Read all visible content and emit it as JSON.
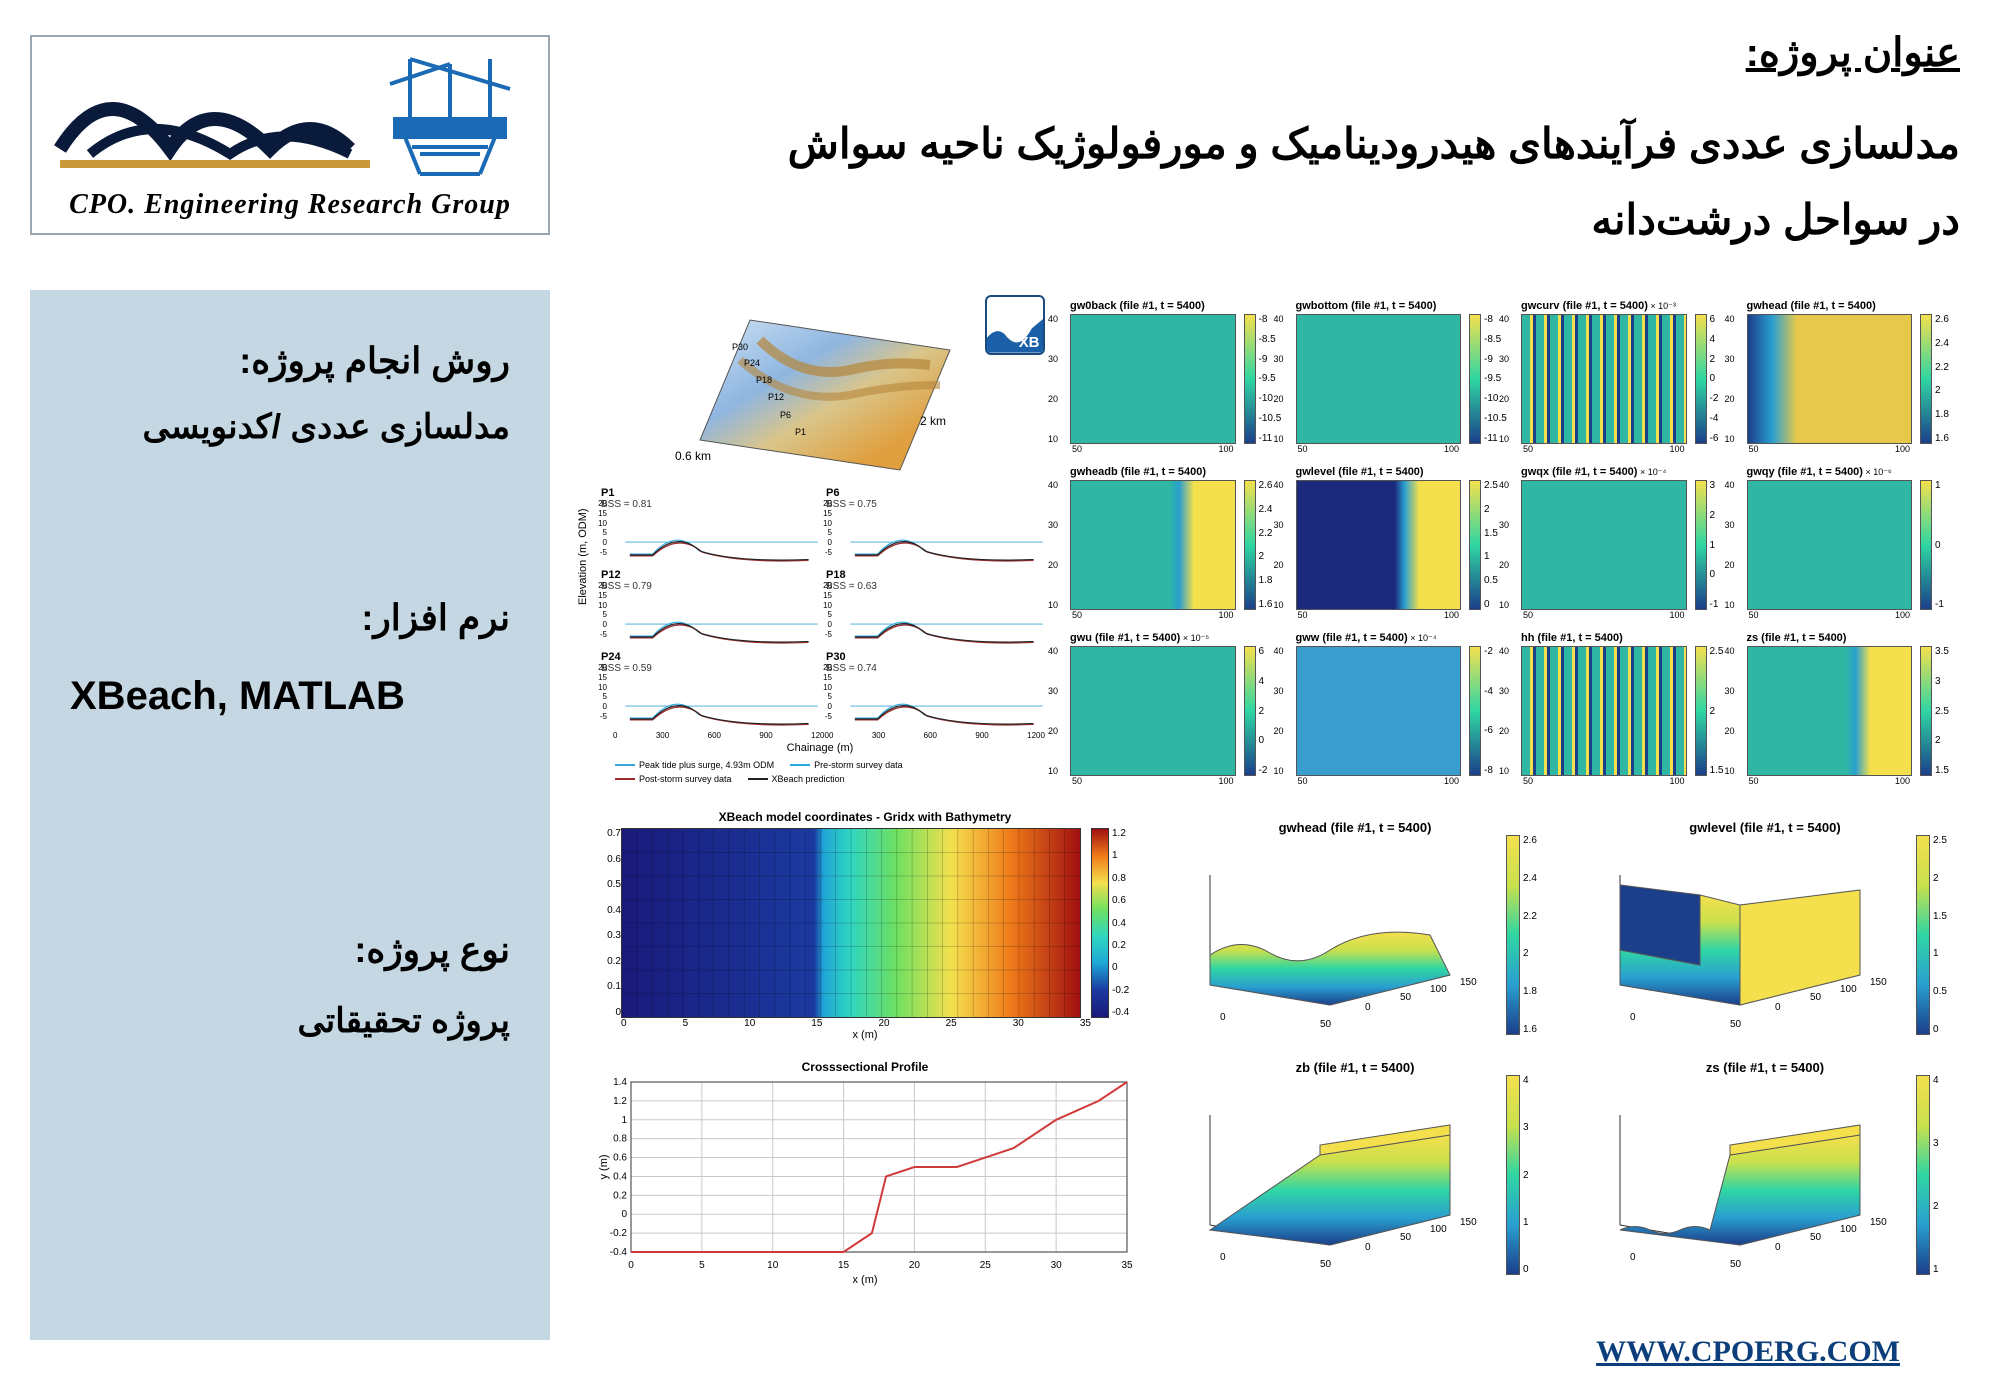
{
  "logo": {
    "text": "CPO. Engineering Research Group"
  },
  "header": {
    "label": "عنوان پروژه:",
    "title_l1": "مدلسازی عددی فرآیندهای هیدرودینامیک و مورفولوژیک ناحیه سواش",
    "title_l2": "در سواحل درشت‌دانه"
  },
  "sidebar": {
    "method_label": "روش انجام پروژه:",
    "method_value": "مدلسازی عددی /کدنویسی",
    "software_label": "نرم افزار:",
    "software_value": "XBeach, MATLAB",
    "type_label": "نوع پروژه:",
    "type_value": "پروژه تحقیقاتی"
  },
  "xb_badge": {
    "label": "XB",
    "border": "#1a4a80",
    "wave_fill": "#1a5fa8"
  },
  "terrain3d": {
    "x_label": "0.6 km",
    "y_label": "2 km",
    "points": [
      "P1",
      "P6",
      "P12",
      "P18",
      "P24",
      "P30"
    ],
    "colors": {
      "low": "#3b6fb5",
      "mid": "#d9c58a",
      "high": "#e0a040"
    }
  },
  "profiles": {
    "y_axis": "Elevation (m, ODM)",
    "x_axis": "Chainage (m)",
    "x_ticks": [
      0,
      300,
      600,
      900,
      1200
    ],
    "y_ticks": [
      -5,
      0,
      5,
      10,
      15,
      20
    ],
    "cells": [
      {
        "name": "P1",
        "bss": "BSS = 0.81"
      },
      {
        "name": "P6",
        "bss": "BSS = 0.75"
      },
      {
        "name": "P12",
        "bss": "BSS = 0.79"
      },
      {
        "name": "P18",
        "bss": "BSS = 0.63"
      },
      {
        "name": "P24",
        "bss": "BSS = 0.59"
      },
      {
        "name": "P30",
        "bss": "BSS = 0.74"
      }
    ],
    "colors": {
      "peak": "#3aa6d8",
      "pre": "#2aa8e0",
      "post": "#9a2c2c",
      "pred": "#222222"
    },
    "legend": [
      {
        "label": "Peak tide plus surge, 4.93m ODM",
        "color": "#3aa6d8"
      },
      {
        "label": "Pre-storm survey data",
        "color": "#2aa8e0"
      },
      {
        "label": "Post-storm survey data",
        "color": "#9a2c2c"
      },
      {
        "label": "XBeach prediction",
        "color": "#222222"
      }
    ]
  },
  "heatmaps": {
    "x_ticks": [
      50,
      100
    ],
    "y_ticks": [
      10,
      20,
      30,
      40
    ],
    "cells": [
      {
        "title": "gw0back (file #1, t = 5400)",
        "bg": "#2fb7a3",
        "ctop": "#f4e04d",
        "cbot": "#1b3f8a",
        "clab": [
          "-8",
          "-8.5",
          "-9",
          "-9.5",
          "-10",
          "-10.5",
          "-11"
        ]
      },
      {
        "title": "gwbottom (file #1, t = 5400)",
        "bg": "#2fb7a3",
        "ctop": "#f4e04d",
        "cbot": "#1b3f8a",
        "clab": [
          "-8",
          "-8.5",
          "-9",
          "-9.5",
          "-10",
          "-10.5",
          "-11"
        ]
      },
      {
        "title": "gwcurv (file #1, t = 5400)",
        "exp": "× 10⁻³",
        "bg": "#2fb7a3",
        "stripes": true,
        "ctop": "#f4e04d",
        "cbot": "#1b3f8a",
        "clab": [
          "6",
          "4",
          "2",
          "0",
          "-2",
          "-4",
          "-6"
        ]
      },
      {
        "title": "gwhead (file #1, t = 5400)",
        "bg": "#e8c84a",
        "leftblue": true,
        "ctop": "#f4e04d",
        "cbot": "#1b3f8a",
        "clab": [
          "2.6",
          "2.4",
          "2.2",
          "2",
          "1.8",
          "1.6"
        ]
      },
      {
        "title": "gwheadb (file #1, t = 5400)",
        "bg": "#2fb7a3",
        "rightyel": true,
        "ctop": "#f4e04d",
        "cbot": "#1b3f8a",
        "clab": [
          "2.6",
          "2.4",
          "2.2",
          "2",
          "1.8",
          "1.6"
        ]
      },
      {
        "title": "gwlevel (file #1, t = 5400)",
        "bg": "#1b2a7a",
        "rightyel": true,
        "ctop": "#f4e04d",
        "cbot": "#1b3f8a",
        "clab": [
          "2.5",
          "2",
          "1.5",
          "1",
          "0.5",
          "0"
        ]
      },
      {
        "title": "gwqx (file #1, t = 5400)",
        "exp": "× 10⁻⁴",
        "bg": "#2fb7a3",
        "ctop": "#f4e04d",
        "cbot": "#1b3f8a",
        "clab": [
          "3",
          "2",
          "1",
          "0",
          "-1"
        ]
      },
      {
        "title": "gwqy (file #1, t = 5400)",
        "exp": "× 10⁻⁶",
        "bg": "#2fb7a3",
        "ctop": "#f4e04d",
        "cbot": "#1b3f8a",
        "clab": [
          "1",
          "0",
          "-1"
        ]
      },
      {
        "title": "gwu (file #1, t = 5400)",
        "exp": "× 10⁻⁵",
        "bg": "#2fb7a3",
        "ctop": "#f4e04d",
        "cbot": "#1b3f8a",
        "clab": [
          "6",
          "4",
          "2",
          "0",
          "-2"
        ]
      },
      {
        "title": "gww (file #1, t = 5400)",
        "exp": "× 10⁻⁴",
        "bg": "#3a9dd0",
        "ctop": "#f4e04d",
        "cbot": "#1b3f8a",
        "clab": [
          "-2",
          "-4",
          "-6",
          "-8"
        ]
      },
      {
        "title": "hh (file #1, t = 5400)",
        "bg": "#2fb7a3",
        "stripes": true,
        "ctop": "#f4e04d",
        "cbot": "#1b3f8a",
        "clab": [
          "2.5",
          "2",
          "1.5"
        ]
      },
      {
        "title": "zs (file #1, t = 5400)",
        "bg": "#2fb7a3",
        "rightyel": true,
        "ctop": "#f4e04d",
        "cbot": "#1b3f8a",
        "clab": [
          "3.5",
          "3",
          "2.5",
          "2",
          "1.5"
        ]
      }
    ]
  },
  "bathymetry": {
    "title": "XBeach model coordinates - Gridx with Bathymetry",
    "x_label": "x (m)",
    "y_label": "y (m)",
    "x_ticks": [
      0,
      5,
      10,
      15,
      20,
      25,
      30,
      35
    ],
    "y_ticks": [
      0,
      0.1,
      0.2,
      0.3,
      0.4,
      0.5,
      0.6,
      0.7
    ],
    "cbar_labels": [
      "1.2",
      "1",
      "0.8",
      "0.6",
      "0.4",
      "0.2",
      "0",
      "-0.2",
      "-0.4"
    ],
    "stops": [
      {
        "p": 0,
        "c": "#1a1a7a"
      },
      {
        "p": 0.42,
        "c": "#1a3aa0"
      },
      {
        "p": 0.44,
        "c": "#1fa6d6"
      },
      {
        "p": 0.5,
        "c": "#2fd6c0"
      },
      {
        "p": 0.6,
        "c": "#6fe060"
      },
      {
        "p": 0.72,
        "c": "#f4e04d"
      },
      {
        "p": 0.85,
        "c": "#ef7a1a"
      },
      {
        "p": 1,
        "c": "#a01010"
      }
    ]
  },
  "cross_profile": {
    "title": "Crosssectional Profile",
    "x_label": "x (m)",
    "y_label": "y (m)",
    "x_ticks": [
      0,
      5,
      10,
      15,
      20,
      25,
      30,
      35
    ],
    "y_ticks": [
      -0.4,
      -0.2,
      0,
      0.2,
      0.4,
      0.6,
      0.8,
      1,
      1.2,
      1.4
    ],
    "line_color": "#d13a3a",
    "grid_color": "#c8c8c8",
    "points": [
      [
        0,
        -0.4
      ],
      [
        5,
        -0.4
      ],
      [
        10,
        -0.4
      ],
      [
        15,
        -0.4
      ],
      [
        17,
        -0.2
      ],
      [
        18,
        0.4
      ],
      [
        20,
        0.5
      ],
      [
        23,
        0.5
      ],
      [
        25,
        0.6
      ],
      [
        27,
        0.7
      ],
      [
        30,
        1.0
      ],
      [
        33,
        1.2
      ],
      [
        35,
        1.4
      ]
    ]
  },
  "surf3d": {
    "x_ticks": [
      0,
      50,
      100,
      150
    ],
    "y_ticks": [
      0,
      50
    ],
    "cells": [
      {
        "title": "gwhead (file #1, t = 5400)",
        "clab": [
          "2.6",
          "2.4",
          "2.2",
          "2",
          "1.8",
          "1.6"
        ],
        "type": "wavy"
      },
      {
        "title": "gwlevel (file #1, t = 5400)",
        "clab": [
          "2.5",
          "2",
          "1.5",
          "1",
          "0.5",
          "0"
        ],
        "type": "step"
      },
      {
        "title": "zb (file #1, t = 5400)",
        "clab": [
          "4",
          "3",
          "2",
          "1",
          "0"
        ],
        "type": "ramp"
      },
      {
        "title": "zs (file #1, t = 5400)",
        "clab": [
          "4",
          "3",
          "2",
          "1"
        ],
        "type": "ramp_wavy"
      }
    ],
    "cmap": [
      {
        "p": 0,
        "c": "#1b3f8a"
      },
      {
        "p": 0.25,
        "c": "#2a9fd0"
      },
      {
        "p": 0.5,
        "c": "#2fd6a3"
      },
      {
        "p": 0.75,
        "c": "#c8e04d"
      },
      {
        "p": 1,
        "c": "#f4e04d"
      }
    ]
  },
  "footer": {
    "url": "WWW.CPOERG.COM"
  }
}
